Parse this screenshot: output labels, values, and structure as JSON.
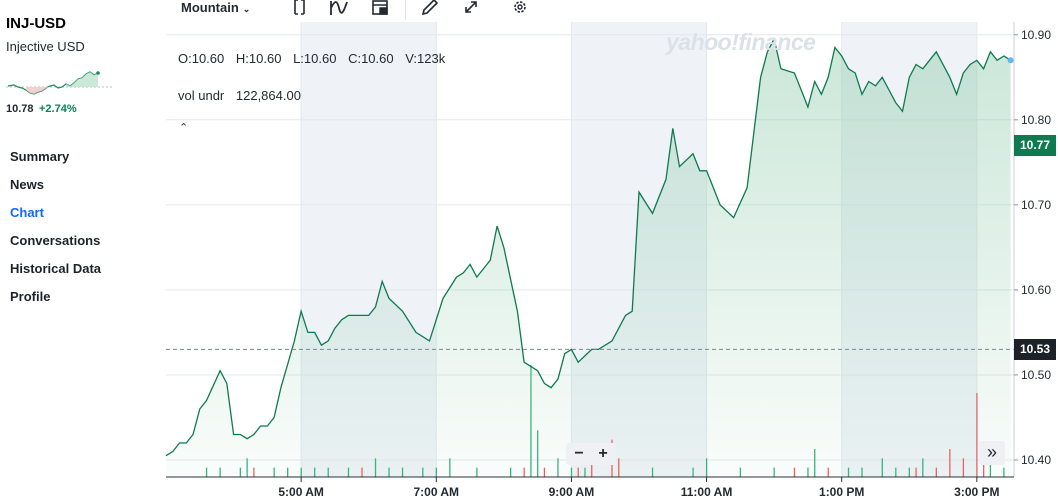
{
  "sidebar": {
    "ticker": "INJ-USD",
    "name": "Injective USD",
    "price": "10.78",
    "change": "+2.74%",
    "nav": [
      "Summary",
      "News",
      "Chart",
      "Conversations",
      "Historical Data",
      "Profile"
    ],
    "active_nav": "Chart"
  },
  "toolbar": {
    "range_label": "Mountain",
    "icons": [
      "compare-icon",
      "indicators-icon",
      "layout-icon",
      "draw-icon",
      "expand-icon",
      "settings-icon"
    ]
  },
  "legend": {
    "ohlc": {
      "open": "O:10.60",
      "high": "H:10.60",
      "low": "L:10.60",
      "close": "C:10.60",
      "volume": "V:123k"
    },
    "vol_label": "vol undr",
    "vol_value": "122,864.00"
  },
  "watermark": "yahoo!finance",
  "colors": {
    "line": "#0d7a4f",
    "accent": "#0f69ff",
    "up": "#008753",
    "down": "#e0323a",
    "current_tag": "#0d7a4f",
    "prev_close_tag": "#1d2228"
  },
  "controls": {
    "zoom_out": "−",
    "zoom_in": "+",
    "forward": "»"
  },
  "chart_data": {
    "type": "area",
    "title": "INJ-USD",
    "x_ticks": [
      "5:00 AM",
      "7:00 AM",
      "9:00 AM",
      "11:00 AM",
      "1:00 PM",
      "3:00 PM"
    ],
    "y_ticks": [
      "10.90",
      "10.80",
      "10.70",
      "10.60",
      "10.50",
      "10.40"
    ],
    "ylim": [
      10.38,
      10.915
    ],
    "x_range_hours": [
      3.0,
      15.55
    ],
    "current_price": "10.77",
    "previous_close": "10.53",
    "grid": true,
    "series": [
      {
        "x": [
          3.0,
          3.1,
          3.2,
          3.3,
          3.4,
          3.5,
          3.6,
          3.8,
          3.9,
          4.0,
          4.1,
          4.2,
          4.3,
          4.4,
          4.5,
          4.6,
          4.7,
          4.9,
          5.0,
          5.1,
          5.2,
          5.3,
          5.4,
          5.5,
          5.6,
          5.7,
          5.8,
          6.0,
          6.1,
          6.2,
          6.3,
          6.5,
          6.7,
          6.9,
          7.1,
          7.3,
          7.4,
          7.5,
          7.6,
          7.8,
          7.9,
          8.0,
          8.2,
          8.3,
          8.4,
          8.5,
          8.6,
          8.7,
          8.8,
          8.9,
          9.0,
          9.1,
          9.3,
          9.4,
          9.5,
          9.6,
          9.8,
          9.9,
          10.0,
          10.2,
          10.4,
          10.5,
          10.6,
          10.8,
          10.9,
          11.0,
          11.2,
          11.4,
          11.6,
          11.8,
          11.9,
          12.0,
          12.1,
          12.3,
          12.4,
          12.5,
          12.6,
          12.7,
          12.8,
          12.9,
          13.0,
          13.1,
          13.2,
          13.3,
          13.4,
          13.5,
          13.6,
          13.7,
          13.8,
          13.9,
          14.0,
          14.1,
          14.2,
          14.3,
          14.4,
          14.6,
          14.7,
          14.8,
          14.9,
          15.0,
          15.1,
          15.2,
          15.3,
          15.4,
          15.5
        ],
        "y": [
          10.405,
          10.41,
          10.42,
          10.42,
          10.43,
          10.46,
          10.47,
          10.505,
          10.49,
          10.43,
          10.43,
          10.425,
          10.43,
          10.44,
          10.44,
          10.45,
          10.485,
          10.54,
          10.575,
          10.55,
          10.55,
          10.535,
          10.54,
          10.555,
          10.565,
          10.57,
          10.57,
          10.57,
          10.58,
          10.61,
          10.59,
          10.575,
          10.55,
          10.54,
          10.59,
          10.615,
          10.62,
          10.63,
          10.615,
          10.635,
          10.675,
          10.65,
          10.575,
          10.515,
          10.51,
          10.505,
          10.49,
          10.485,
          10.495,
          10.525,
          10.53,
          10.515,
          10.53,
          10.53,
          10.535,
          10.54,
          10.57,
          10.575,
          10.715,
          10.69,
          10.73,
          10.79,
          10.745,
          10.76,
          10.74,
          10.74,
          10.7,
          10.685,
          10.72,
          10.85,
          10.88,
          10.895,
          10.86,
          10.855,
          10.835,
          10.815,
          10.845,
          10.83,
          10.85,
          10.885,
          10.875,
          10.86,
          10.855,
          10.83,
          10.845,
          10.84,
          10.85,
          10.835,
          10.82,
          10.81,
          10.85,
          10.865,
          10.86,
          10.87,
          10.88,
          10.85,
          10.83,
          10.855,
          10.865,
          10.87,
          10.86,
          10.88,
          10.87,
          10.875,
          10.87
        ]
      }
    ],
    "volume": {
      "x": [
        3.6,
        3.8,
        4.1,
        4.2,
        4.3,
        4.6,
        4.8,
        5.0,
        5.2,
        5.4,
        5.7,
        5.9,
        6.1,
        6.3,
        6.5,
        6.8,
        7.0,
        7.2,
        7.6,
        8.1,
        8.3,
        8.4,
        8.5,
        8.6,
        8.8,
        9.0,
        9.1,
        9.2,
        9.3,
        9.6,
        9.7,
        10.2,
        10.8,
        11.0,
        11.5,
        12.0,
        12.3,
        12.5,
        12.6,
        12.8,
        13.1,
        13.3,
        13.6,
        13.8,
        14.0,
        14.1,
        14.2,
        14.4,
        14.6,
        14.8,
        15.0,
        15.1,
        15.2,
        15.4
      ],
      "v": [
        1,
        1,
        1,
        2,
        1,
        1,
        1,
        1,
        1,
        1,
        1,
        1,
        2,
        1,
        1,
        1,
        1,
        2,
        1,
        1,
        1,
        12,
        5,
        1,
        2,
        1,
        1,
        1,
        2,
        4,
        2,
        1,
        1,
        2,
        1,
        1,
        1,
        1,
        3,
        1,
        1,
        1,
        2,
        1,
        1,
        1,
        2,
        1,
        3,
        2,
        9,
        2,
        2,
        1
      ],
      "up": [
        true,
        true,
        true,
        true,
        false,
        true,
        true,
        true,
        true,
        true,
        true,
        false,
        true,
        true,
        true,
        true,
        true,
        true,
        true,
        true,
        false,
        true,
        true,
        false,
        true,
        true,
        false,
        true,
        false,
        false,
        false,
        true,
        true,
        true,
        true,
        true,
        false,
        true,
        true,
        false,
        true,
        true,
        true,
        true,
        true,
        false,
        true,
        false,
        false,
        false,
        false,
        false,
        true,
        true
      ]
    }
  }
}
